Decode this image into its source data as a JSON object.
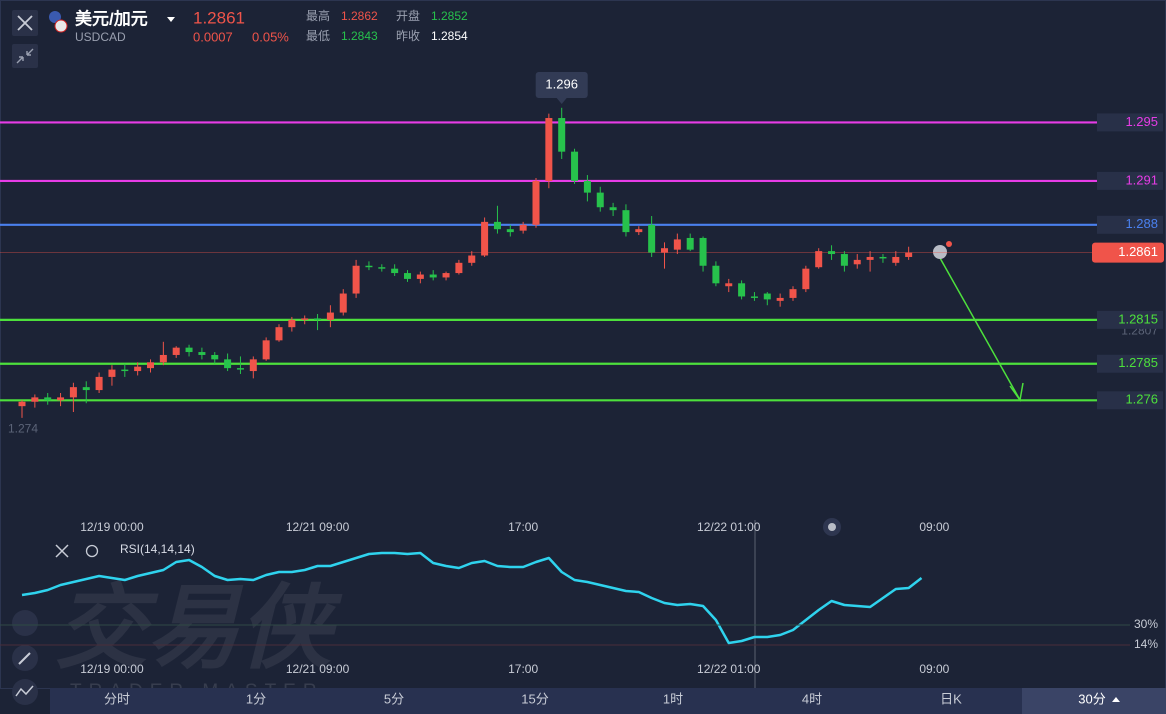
{
  "header": {
    "pair": "美元/加元",
    "symbol": "USDCAD",
    "price": "1.2861",
    "change": "0.0007",
    "change_pct": "0.05%",
    "stats": [
      {
        "label": "最高",
        "value": "1.2862"
      },
      {
        "label": "开盘",
        "value": "1.2852"
      },
      {
        "label": "最低",
        "value": "1.2843"
      },
      {
        "label": "昨收",
        "value": "1.2854"
      }
    ]
  },
  "watermark": {
    "title": "交易侠",
    "subtitle": "TRADER MASTER"
  },
  "tabs": [
    "分时",
    "1分",
    "5分",
    "15分",
    "1时",
    "4时",
    "日K"
  ],
  "interval": "30分",
  "chart_data": [
    {
      "type": "candlestick",
      "up_color": "#f0544a",
      "down_color": "#27c24c",
      "categories": [
        null,
        null,
        null,
        null,
        null,
        null,
        null,
        "12/19 00:00",
        null,
        null,
        null,
        null,
        null,
        null,
        null,
        null,
        null,
        null,
        null,
        null,
        null,
        null,
        null,
        "12/21 09:00",
        null,
        null,
        null,
        null,
        null,
        null,
        null,
        null,
        null,
        null,
        null,
        null,
        null,
        null,
        null,
        "17:00",
        null,
        null,
        null,
        null,
        null,
        null,
        null,
        null,
        null,
        null,
        null,
        null,
        null,
        null,
        null,
        "12/22 01:00",
        null,
        null,
        null,
        null,
        null,
        null,
        null,
        null,
        null,
        null,
        null,
        null,
        null,
        null,
        null,
        "09:00"
      ],
      "open": [
        1.2756,
        1.2759,
        1.2762,
        1.276,
        1.2762,
        1.2769,
        1.2767,
        1.2776,
        1.2781,
        1.278,
        1.2782,
        1.2786,
        1.2791,
        1.2796,
        1.2793,
        1.2791,
        1.2788,
        1.2782,
        1.278,
        1.2788,
        1.2801,
        1.281,
        1.2815,
        1.2816,
        1.2815,
        1.282,
        1.2833,
        1.2852,
        1.2851,
        1.285,
        1.2847,
        1.2843,
        1.2846,
        1.2844,
        1.2847,
        1.2854,
        1.2859,
        1.2882,
        1.2877,
        1.2876,
        1.288,
        1.291,
        1.2953,
        1.293,
        1.291,
        1.2902,
        1.2892,
        1.289,
        1.2875,
        1.288,
        1.2861,
        1.2863,
        1.2871,
        1.2871,
        1.2852,
        1.2838,
        1.284,
        1.2831,
        1.2833,
        1.2828,
        1.283,
        1.2836,
        1.2851,
        1.2862,
        1.286,
        1.2853,
        1.2856,
        1.2858,
        1.2854,
        1.2858,
        null,
        null
      ],
      "high": [
        1.276,
        1.2764,
        1.2765,
        1.2765,
        1.2772,
        1.2773,
        1.2779,
        1.2784,
        1.2785,
        1.2786,
        1.2788,
        1.28,
        1.2797,
        1.2798,
        1.2796,
        1.2793,
        1.2792,
        1.279,
        1.279,
        1.2803,
        1.2812,
        1.2817,
        1.2818,
        1.2819,
        1.2825,
        1.2836,
        1.2856,
        1.2855,
        1.2853,
        1.2853,
        1.2849,
        1.2848,
        1.2849,
        1.2848,
        1.2856,
        1.2862,
        1.2885,
        1.2893,
        1.288,
        1.2882,
        1.2912,
        1.2956,
        1.296,
        1.2932,
        1.2914,
        1.2906,
        1.2895,
        1.2894,
        1.2879,
        1.2886,
        1.2868,
        1.2874,
        1.2874,
        1.2872,
        1.2855,
        1.2843,
        1.2842,
        1.2834,
        1.2834,
        1.2833,
        1.2838,
        1.2852,
        1.2864,
        1.2866,
        1.2862,
        1.286,
        1.2862,
        1.286,
        1.2862,
        1.2865,
        null,
        null
      ],
      "low": [
        1.2748,
        1.2755,
        1.2757,
        1.2756,
        1.2752,
        1.2758,
        1.2765,
        1.277,
        1.2776,
        1.2777,
        1.2779,
        1.2784,
        1.2789,
        1.279,
        1.2788,
        1.2785,
        1.278,
        1.2778,
        1.2775,
        1.2787,
        1.28,
        1.2807,
        1.2812,
        1.2808,
        1.281,
        1.2818,
        1.283,
        1.2849,
        1.2848,
        1.2845,
        1.2841,
        1.284,
        1.2842,
        1.2842,
        1.2846,
        1.2852,
        1.2858,
        1.2874,
        1.2872,
        1.2874,
        1.2878,
        1.2905,
        1.2925,
        1.2908,
        1.2896,
        1.2889,
        1.2886,
        1.2872,
        1.2873,
        1.2858,
        1.285,
        1.286,
        1.2862,
        1.2848,
        1.2838,
        1.2834,
        1.2829,
        1.2828,
        1.2825,
        1.2824,
        1.2828,
        1.2834,
        1.285,
        1.2856,
        1.2848,
        1.285,
        1.2848,
        1.2854,
        1.2852,
        1.2856,
        null,
        null
      ],
      "close": [
        1.2759,
        1.2762,
        1.276,
        1.2762,
        1.2769,
        1.2767,
        1.2776,
        1.2781,
        1.278,
        1.2783,
        1.2786,
        1.2791,
        1.2796,
        1.2793,
        1.2791,
        1.2788,
        1.2782,
        1.2781,
        1.2788,
        1.2801,
        1.281,
        1.2815,
        1.2816,
        1.2815,
        1.282,
        1.2833,
        1.2852,
        1.2851,
        1.285,
        1.2847,
        1.2843,
        1.2846,
        1.2844,
        1.2847,
        1.2854,
        1.2859,
        1.2882,
        1.2877,
        1.2875,
        1.288,
        1.291,
        1.2953,
        1.293,
        1.291,
        1.2902,
        1.2892,
        1.289,
        1.2875,
        1.2877,
        1.2861,
        1.2864,
        1.287,
        1.2863,
        1.2852,
        1.284,
        1.284,
        1.2831,
        1.283,
        1.2829,
        1.283,
        1.2836,
        1.285,
        1.2862,
        1.286,
        1.2852,
        1.2856,
        1.2858,
        1.2857,
        1.2858,
        1.2861,
        null,
        null
      ],
      "ylim": [
        1.2685,
        1.2979
      ],
      "yticks": [
        1.274,
        1.2807
      ],
      "levels": [
        {
          "value": 1.295,
          "color": "#e63ce6"
        },
        {
          "value": 1.291,
          "color": "#e63ce6"
        },
        {
          "value": 1.288,
          "color": "#4a80ee"
        },
        {
          "value": 1.2815,
          "color": "#4de03c"
        },
        {
          "value": 1.2785,
          "color": "#4de03c"
        },
        {
          "value": 1.276,
          "color": "#4de03c"
        }
      ],
      "last_price": {
        "value": 1.2861,
        "color": "#f0544a"
      },
      "annotations": [
        {
          "text": "1.296"
        }
      ]
    },
    {
      "type": "line",
      "title": "RSI(14,14,14)",
      "color": "#2fd3ee",
      "categories": [
        null,
        null,
        null,
        null,
        null,
        null,
        null,
        "12/19 00:00",
        null,
        null,
        null,
        null,
        null,
        null,
        null,
        null,
        null,
        null,
        null,
        null,
        null,
        null,
        null,
        "12/21 09:00",
        null,
        null,
        null,
        null,
        null,
        null,
        null,
        null,
        null,
        null,
        null,
        null,
        null,
        null,
        null,
        "17:00",
        null,
        null,
        null,
        null,
        null,
        null,
        null,
        null,
        null,
        null,
        null,
        null,
        null,
        null,
        null,
        "12/22 01:00",
        null,
        null,
        null,
        null,
        null,
        null,
        null,
        null,
        null,
        null,
        null,
        null,
        null,
        null,
        null,
        "09:00"
      ],
      "values": [
        54,
        55.6,
        58,
        62,
        64.4,
        66.8,
        69.2,
        67.6,
        66,
        69.2,
        71.6,
        74,
        80.4,
        82,
        76.4,
        69.2,
        66,
        66.8,
        66,
        70,
        72.4,
        72.4,
        74,
        77.2,
        77.2,
        80.4,
        83.6,
        86.8,
        87.6,
        87.6,
        86.8,
        87.6,
        79.6,
        77.2,
        75.6,
        79.6,
        81.2,
        77.2,
        76.4,
        76.4,
        80.4,
        83.6,
        72.4,
        66,
        64.4,
        62,
        59.6,
        57.2,
        56.4,
        51.6,
        47.6,
        46,
        46.8,
        45.2,
        34,
        15.6,
        17.2,
        20.4,
        20.4,
        22,
        26,
        34,
        42,
        49.2,
        46,
        45.2,
        44.4,
        51.6,
        58.8,
        59.6,
        67.6,
        null
      ],
      "ylim": [
        2,
        98
      ],
      "yticks": [
        {
          "value": 30,
          "label": "30%"
        },
        {
          "value": 14,
          "label": "14%"
        }
      ]
    }
  ]
}
